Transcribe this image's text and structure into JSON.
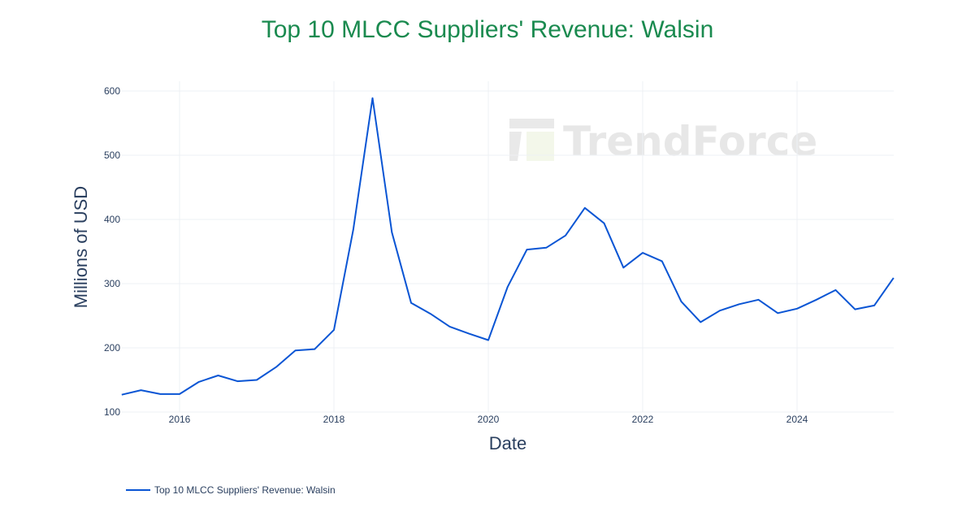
{
  "title": "Top 10 MLCC Suppliers' Revenue: Walsin",
  "watermark": "TrendForce",
  "legend": {
    "label": "Top 10 MLCC Suppliers' Revenue: Walsin"
  },
  "colors": {
    "title": "#1a8a4f",
    "line": "#0a55d4",
    "grid": "#eef0f4",
    "text": "#2a3f5f"
  },
  "chart_data": {
    "type": "line",
    "title": "Top 10 MLCC Suppliers' Revenue: Walsin",
    "xlabel": "Date",
    "ylabel": "Millions of USD",
    "ylim": [
      100,
      600
    ],
    "xticks": [
      "2016",
      "2018",
      "2020",
      "2022",
      "2024"
    ],
    "yticks": [
      100,
      200,
      300,
      400,
      500,
      600
    ],
    "grid": true,
    "legend_position": "bottom-left",
    "x": [
      "2015Q2",
      "2015Q3",
      "2015Q4",
      "2016Q1",
      "2016Q2",
      "2016Q3",
      "2016Q4",
      "2017Q1",
      "2017Q2",
      "2017Q3",
      "2017Q4",
      "2018Q1",
      "2018Q2",
      "2018Q3",
      "2018Q4",
      "2019Q1",
      "2019Q2",
      "2019Q3",
      "2019Q4",
      "2020Q1",
      "2020Q2",
      "2020Q3",
      "2020Q4",
      "2021Q1",
      "2021Q2",
      "2021Q3",
      "2021Q4",
      "2022Q1",
      "2022Q2",
      "2022Q3",
      "2022Q4",
      "2023Q1",
      "2023Q2",
      "2023Q3",
      "2023Q4",
      "2024Q1",
      "2024Q2",
      "2024Q3",
      "2024Q4",
      "2025Q1",
      "2025Q2"
    ],
    "series": [
      {
        "name": "Top 10 MLCC Suppliers' Revenue: Walsin",
        "values": [
          127,
          134,
          128,
          128,
          147,
          157,
          148,
          150,
          170,
          196,
          198,
          228,
          384,
          589,
          380,
          270,
          253,
          233,
          222,
          212,
          295,
          353,
          356,
          375,
          418,
          394,
          325,
          348,
          335,
          272,
          240,
          258,
          268,
          275,
          254,
          261,
          275,
          290,
          260,
          266,
          309
        ]
      }
    ]
  }
}
